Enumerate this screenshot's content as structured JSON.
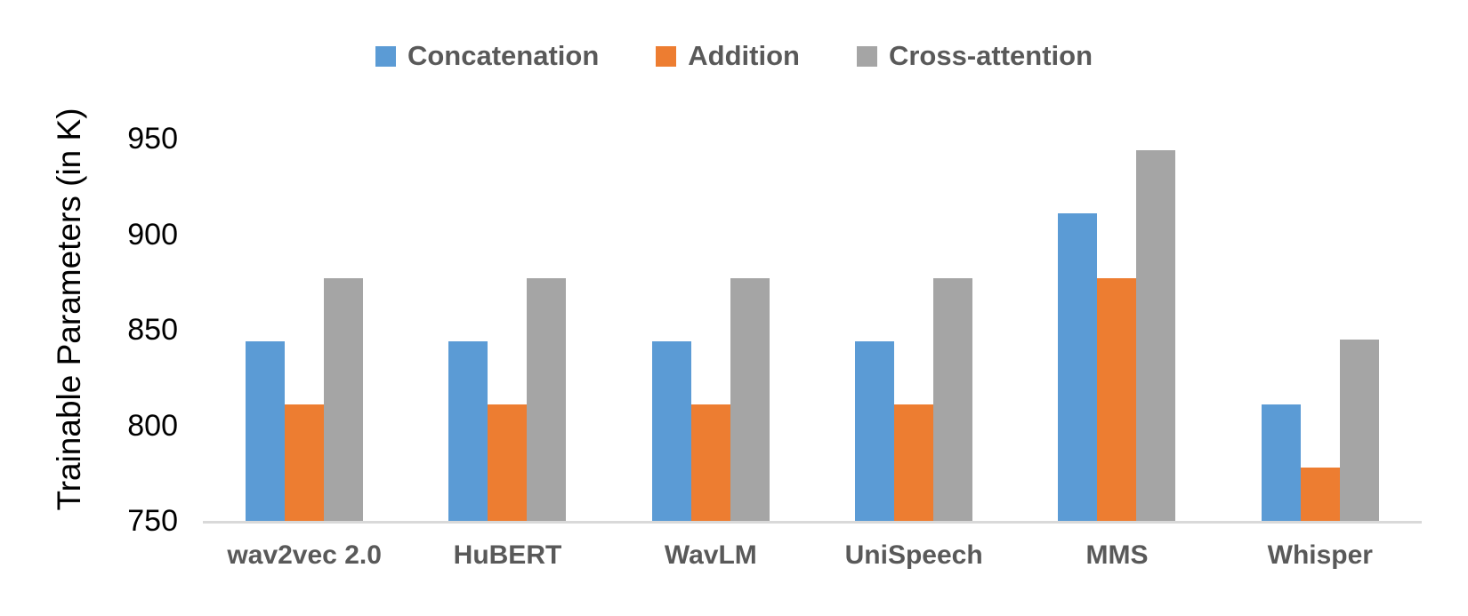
{
  "chart_data": {
    "type": "bar",
    "title": "",
    "xlabel": "",
    "ylabel": "Trainable Parameters (in K)",
    "categories": [
      "wav2vec 2.0",
      "HuBERT",
      "WavLM",
      "UniSpeech",
      "MMS",
      "Whisper"
    ],
    "series": [
      {
        "name": "Concatenation",
        "color": "#5B9BD5",
        "values": [
          844,
          844,
          844,
          844,
          911,
          811
        ]
      },
      {
        "name": "Addition",
        "color": "#ED7D31",
        "values": [
          811,
          811,
          811,
          811,
          877,
          778
        ]
      },
      {
        "name": "Cross-attention",
        "color": "#A5A5A5",
        "values": [
          877,
          877,
          877,
          877,
          944,
          845
        ]
      }
    ],
    "ylim": [
      750,
      967
    ],
    "yticks": [
      750,
      800,
      850,
      900,
      950
    ],
    "grid": false,
    "legend_position": "top-center",
    "colors": {
      "axis_line": "#D9D9D9",
      "category_label": "#595959",
      "tick_label": "#000000",
      "plot_background": "#ffffff"
    }
  }
}
